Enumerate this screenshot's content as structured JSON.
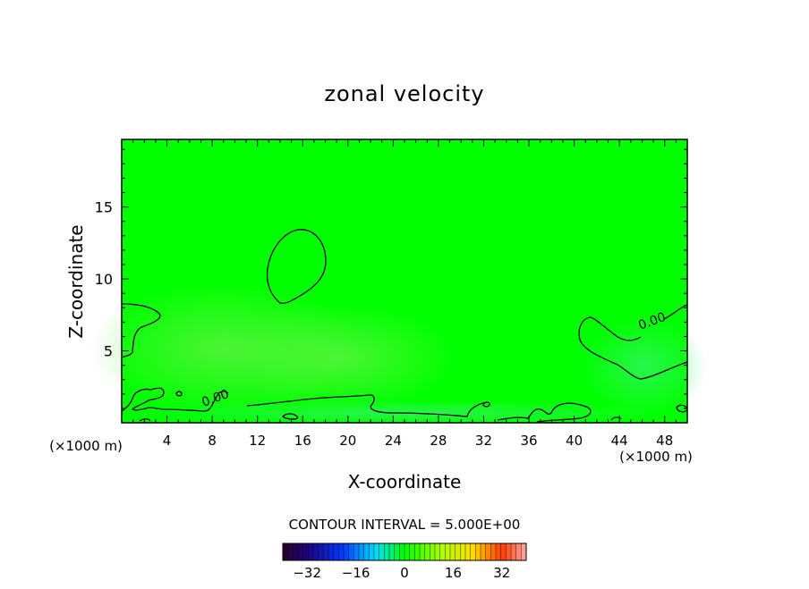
{
  "chart_data": {
    "type": "contour",
    "title": "zonal velocity",
    "xlabel": "X-coordinate",
    "ylabel": "Z-coordinate",
    "x_unit_left": "(×1000 m)",
    "x_unit_right": "(×1000 m)",
    "xlim": [
      0,
      50
    ],
    "ylim": [
      0,
      19.7
    ],
    "x_ticks": [
      4,
      8,
      12,
      16,
      20,
      24,
      28,
      32,
      36,
      40,
      44,
      48
    ],
    "y_ticks": [
      5,
      10,
      15
    ],
    "contour_labels": [
      {
        "text": "0.00",
        "x": 8.4,
        "y": 1.45
      },
      {
        "text": "0.00",
        "x": 47.0,
        "y": 6.8
      }
    ],
    "contour_interval_label": "CONTOUR INTERVAL = 5.000E+00",
    "colorbar": {
      "min": -40,
      "max": 40,
      "tick_values": [
        -32,
        -16,
        0,
        16,
        32
      ],
      "tick_labels": [
        "−32",
        "−16",
        "0",
        "16",
        "32"
      ]
    },
    "colors": {
      "background_field": "#00ff00",
      "contour_line": "#000000"
    }
  }
}
